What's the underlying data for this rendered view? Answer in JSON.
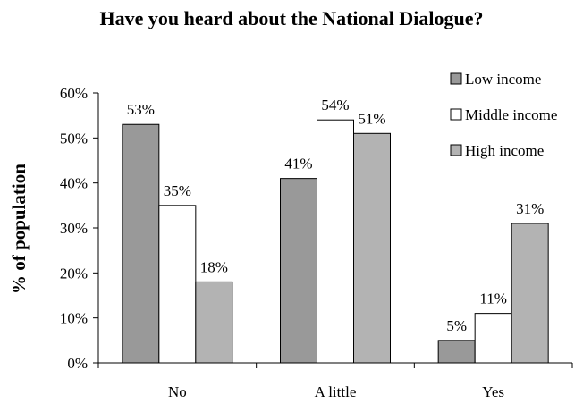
{
  "chart_data": {
    "type": "bar",
    "title": "Have you heard about the National Dialogue?",
    "xlabel": "",
    "ylabel": "% of population",
    "categories": [
      "No",
      "A little",
      "Yes"
    ],
    "series": [
      {
        "name": "Low income",
        "values": [
          53,
          41,
          5
        ],
        "labels": [
          "53%",
          "41%",
          "5%"
        ],
        "color": "#999999"
      },
      {
        "name": "Middle income",
        "values": [
          35,
          54,
          11
        ],
        "labels": [
          "35%",
          "54%",
          "11%"
        ],
        "color": "#ffffff"
      },
      {
        "name": "High income",
        "values": [
          18,
          51,
          31
        ],
        "labels": [
          "18%",
          "51%",
          "31%"
        ],
        "color": "#b3b3b3"
      }
    ],
    "ylim": [
      0,
      60
    ],
    "yticks": [
      0,
      10,
      20,
      30,
      40,
      50,
      60
    ],
    "ytick_labels": [
      "0%",
      "10%",
      "20%",
      "30%",
      "40%",
      "50%",
      "60%"
    ],
    "grid": false,
    "legend_position": "top-right"
  }
}
